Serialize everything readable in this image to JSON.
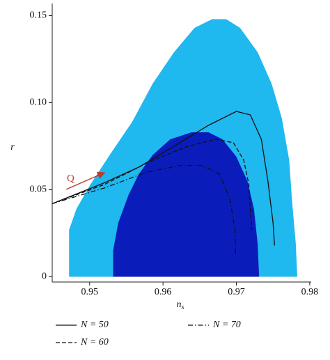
{
  "chart_data": {
    "type": "line",
    "x_label": "n",
    "x_label_sub": "s",
    "y_label": "r",
    "xlim": [
      0.9449,
      0.9802
    ],
    "ylim": [
      -0.003,
      0.157
    ],
    "xticks": [
      0.95,
      0.96,
      0.97,
      0.98
    ],
    "yticks": [
      0,
      0.05,
      {
        "value": 0.1,
        "label": "0.10"
      },
      0.15
    ],
    "regions": [
      {
        "color": "#1fb8ef",
        "x": [
          0.9472,
          0.9472,
          0.9482,
          0.9501,
          0.9529,
          0.9558,
          0.9586,
          0.9615,
          0.9643,
          0.9667,
          0.9686,
          0.9705,
          0.9729,
          0.9748,
          0.9762,
          0.9772,
          0.9776,
          0.9781,
          0.9783
        ],
        "y": [
          0.0,
          0.027,
          0.039,
          0.053,
          0.071,
          0.089,
          0.111,
          0.129,
          0.143,
          0.148,
          0.148,
          0.143,
          0.129,
          0.111,
          0.091,
          0.067,
          0.043,
          0.019,
          0.0
        ]
      },
      {
        "color": "#0a1dba",
        "x": [
          0.9532,
          0.9532,
          0.9539,
          0.9553,
          0.9567,
          0.9586,
          0.961,
          0.9639,
          0.9662,
          0.9681,
          0.97,
          0.9715,
          0.9724,
          0.9729,
          0.9731
        ],
        "y": [
          0.0,
          0.015,
          0.031,
          0.047,
          0.059,
          0.07,
          0.079,
          0.083,
          0.083,
          0.079,
          0.069,
          0.055,
          0.039,
          0.019,
          0.0
        ]
      }
    ],
    "series": [
      {
        "name": "N = 50",
        "color": "#111111",
        "style": "solid",
        "x": [
          0.9449,
          0.952,
          0.9567,
          0.9615,
          0.9662,
          0.97,
          0.9719,
          0.9734,
          0.9743,
          0.975,
          0.9752
        ],
        "values": [
          0.042,
          0.054,
          0.063,
          0.075,
          0.087,
          0.095,
          0.093,
          0.079,
          0.055,
          0.031,
          0.018
        ]
      },
      {
        "name": "N = 60",
        "color": "#111111",
        "style": "dashed",
        "x": [
          0.9449,
          0.952,
          0.9586,
          0.9634,
          0.9672,
          0.9696,
          0.971,
          0.9717,
          0.9719,
          0.9721
        ],
        "values": [
          0.042,
          0.053,
          0.067,
          0.075,
          0.079,
          0.077,
          0.067,
          0.053,
          0.039,
          0.027
        ]
      },
      {
        "name": "N = 70",
        "color": "#111111",
        "style": "dashdot",
        "x": [
          0.9449,
          0.952,
          0.9577,
          0.9624,
          0.9653,
          0.9677,
          0.9691,
          0.9698,
          0.9699
        ],
        "values": [
          0.042,
          0.051,
          0.06,
          0.064,
          0.064,
          0.059,
          0.045,
          0.027,
          0.013
        ]
      }
    ],
    "annotation": "Q"
  }
}
